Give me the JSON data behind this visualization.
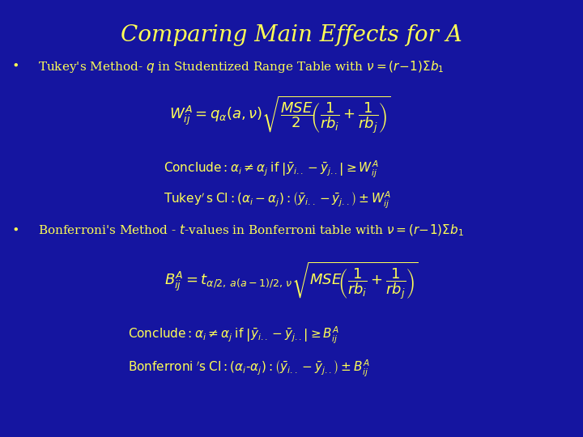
{
  "background_color": "#1515a0",
  "title": "Comparing Main Effects for A",
  "title_color": "#ffff55",
  "text_color": "#ffff55",
  "title_fontsize": 20,
  "bullet_fontsize": 11,
  "formula_fontsize": 12
}
